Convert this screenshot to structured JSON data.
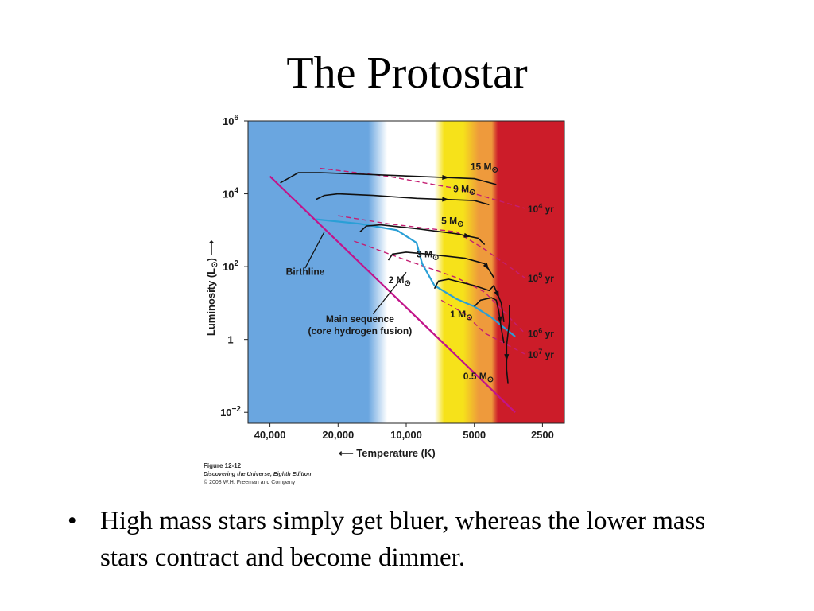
{
  "title": "The Protostar",
  "bullet": {
    "marker": "•",
    "text": "High mass stars simply get bluer, whereas the lower mass stars contract and become dimmer."
  },
  "figure_credit": {
    "figure": "Figure 12-12",
    "book": "Discovering the Universe, Eighth Edition",
    "copyright": "© 2008 W.H. Freeman and Company"
  },
  "colors": {
    "blue": "#6aa6e0",
    "white": "#ffffff",
    "yellow": "#f6e21a",
    "orange": "#ee9a3c",
    "red": "#cc1c29",
    "main_sequence": "#c2148a",
    "birthline": "#2a9fd6",
    "isochrone": "#c41e72",
    "track": "#111111"
  },
  "chart_data": {
    "type": "line",
    "xlabel": "Temperature (K)",
    "xlabel_arrow": "⟵",
    "ylabel_main": "Luminosity (L",
    "ylabel_sub": "⊙",
    "ylabel_close": ")",
    "ylabel_arrow": "⟶",
    "xscale": "log, reversed (hot to cool)",
    "yscale": "log",
    "xlim": [
      50000,
      2000
    ],
    "ylim": [
      0.005,
      1000000
    ],
    "x_ticks": [
      {
        "value": 40000,
        "label": "40,000"
      },
      {
        "value": 20000,
        "label": "20,000"
      },
      {
        "value": 10000,
        "label": "10,000"
      },
      {
        "value": 5000,
        "label": "5000"
      },
      {
        "value": 2500,
        "label": "2500"
      }
    ],
    "y_ticks": [
      {
        "value": 1000000,
        "base": "10",
        "exp": "6"
      },
      {
        "value": 10000,
        "base": "10",
        "exp": "4"
      },
      {
        "value": 100,
        "base": "10",
        "exp": "2"
      },
      {
        "value": 1,
        "base": "1",
        "exp": ""
      },
      {
        "value": 0.01,
        "base": "10",
        "exp": "−2"
      }
    ],
    "main_sequence": {
      "label_line1": "Main sequence",
      "label_line2": "(core hydrogen fusion)",
      "points": [
        [
          40000,
          30000
        ],
        [
          3300,
          0.01
        ]
      ]
    },
    "birthline": {
      "label": "Birthline",
      "points": [
        [
          25000,
          2000
        ],
        [
          16000,
          1500
        ],
        [
          11000,
          1000
        ],
        [
          9000,
          450
        ],
        [
          8500,
          120
        ],
        [
          7500,
          30
        ],
        [
          6000,
          13
        ],
        [
          5000,
          8
        ],
        [
          4200,
          4
        ],
        [
          3300,
          1.2
        ]
      ]
    },
    "tracks": [
      {
        "mass": "15 M",
        "sun": "⊙",
        "points": [
          [
            36000,
            20000
          ],
          [
            33000,
            27000
          ],
          [
            30000,
            38000
          ],
          [
            24000,
            38000
          ],
          [
            15000,
            34000
          ],
          [
            9000,
            30000
          ],
          [
            5000,
            26000
          ],
          [
            4000,
            18000
          ]
        ]
      },
      {
        "mass": "9 M",
        "sun": "⊙",
        "points": [
          [
            25000,
            7000
          ],
          [
            23000,
            9000
          ],
          [
            20000,
            10000
          ],
          [
            14000,
            9000
          ],
          [
            9000,
            7500
          ],
          [
            5000,
            6500
          ],
          [
            4300,
            5000
          ]
        ]
      },
      {
        "mass": "5 M",
        "sun": "⊙",
        "points": [
          [
            16000,
            900
          ],
          [
            15000,
            1300
          ],
          [
            13000,
            1400
          ],
          [
            9000,
            1100
          ],
          [
            6000,
            800
          ],
          [
            4800,
            600
          ],
          [
            4500,
            400
          ]
        ]
      },
      {
        "mass": "3 M",
        "sun": "⊙",
        "points": [
          [
            12000,
            150
          ],
          [
            11500,
            220
          ],
          [
            10000,
            250
          ],
          [
            8000,
            220
          ],
          [
            5500,
            170
          ],
          [
            4500,
            120
          ],
          [
            4300,
            80
          ],
          [
            4100,
            50
          ]
        ]
      },
      {
        "mass": "2 M",
        "sun": "⊙",
        "points": [
          [
            7500,
            25
          ],
          [
            7200,
            40
          ],
          [
            6500,
            45
          ],
          [
            5000,
            30
          ],
          [
            4300,
            22
          ],
          [
            4100,
            30
          ],
          [
            3800,
            10
          ],
          [
            3700,
            3
          ]
        ]
      },
      {
        "mass": "1 M",
        "sun": "⊙",
        "points": [
          [
            5000,
            8
          ],
          [
            4700,
            12
          ],
          [
            4200,
            14
          ],
          [
            4000,
            12
          ],
          [
            3900,
            6
          ],
          [
            3800,
            2
          ],
          [
            3700,
            0.8
          ]
        ]
      },
      {
        "mass": "0.5 M",
        "sun": "⊙",
        "points": [
          [
            3500,
            9
          ],
          [
            3500,
            3
          ],
          [
            3600,
            0.7
          ],
          [
            3600,
            0.15
          ],
          [
            3550,
            0.06
          ]
        ]
      }
    ],
    "isochrones": [
      {
        "label": "10",
        "exp": "4",
        "unit": " yr",
        "points": [
          [
            24000,
            50000
          ],
          [
            12000,
            30000
          ],
          [
            6000,
            14000
          ],
          [
            3000,
            4000
          ]
        ]
      },
      {
        "label": "10",
        "exp": "5",
        "unit": " yr",
        "points": [
          [
            20000,
            2500
          ],
          [
            12000,
            1500
          ],
          [
            6000,
            900
          ],
          [
            4500,
            300
          ],
          [
            3000,
            50
          ]
        ]
      },
      {
        "label": "10",
        "exp": "6",
        "unit": " yr",
        "points": [
          [
            17000,
            500
          ],
          [
            10000,
            150
          ],
          [
            6000,
            50
          ],
          [
            4500,
            20
          ],
          [
            3000,
            1.5
          ]
        ]
      },
      {
        "label": "10",
        "exp": "7",
        "unit": " yr",
        "points": [
          [
            7000,
            12
          ],
          [
            5500,
            5
          ],
          [
            4500,
            1.5
          ],
          [
            3000,
            0.4
          ]
        ]
      }
    ]
  }
}
